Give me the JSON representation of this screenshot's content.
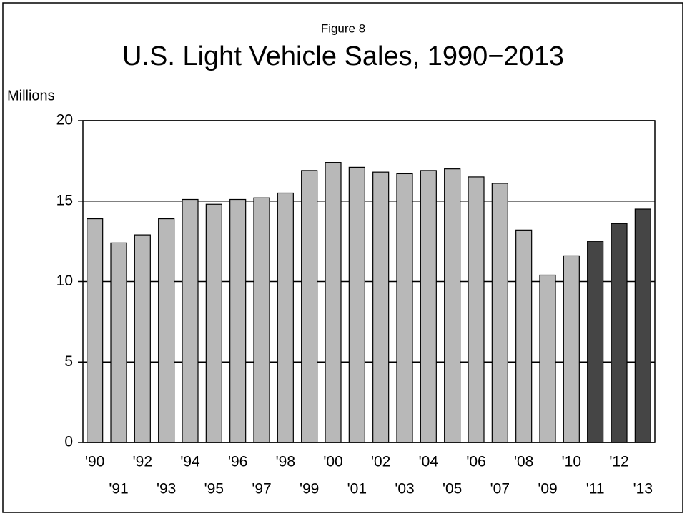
{
  "chart_data": {
    "type": "bar",
    "subtitle": "Figure 8",
    "title": "U.S. Light Vehicle Sales, 1990−2013",
    "y_label": "Millions",
    "categories": [
      "'90",
      "'91",
      "'92",
      "'93",
      "'94",
      "'95",
      "'96",
      "'97",
      "'98",
      "'99",
      "'00",
      "'01",
      "'02",
      "'03",
      "'04",
      "'05",
      "'06",
      "'07",
      "'08",
      "'09",
      "'10",
      "'11",
      "'12",
      "'13"
    ],
    "values": [
      13.9,
      12.4,
      12.9,
      13.9,
      15.1,
      14.8,
      15.1,
      15.2,
      15.5,
      16.9,
      17.4,
      17.1,
      16.8,
      16.7,
      16.9,
      17.0,
      16.5,
      16.1,
      13.2,
      10.4,
      11.6,
      12.5,
      13.6,
      14.5
    ],
    "colors": [
      "#b8b8b8",
      "#b8b8b8",
      "#b8b8b8",
      "#b8b8b8",
      "#b8b8b8",
      "#b8b8b8",
      "#b8b8b8",
      "#b8b8b8",
      "#b8b8b8",
      "#b8b8b8",
      "#b8b8b8",
      "#b8b8b8",
      "#b8b8b8",
      "#b8b8b8",
      "#b8b8b8",
      "#b8b8b8",
      "#b8b8b8",
      "#b8b8b8",
      "#b8b8b8",
      "#b8b8b8",
      "#b8b8b8",
      "#454545",
      "#454545",
      "#454545"
    ],
    "ylim": [
      0,
      20
    ],
    "yticks": [
      0,
      5,
      10,
      15,
      20
    ],
    "grid": true
  }
}
